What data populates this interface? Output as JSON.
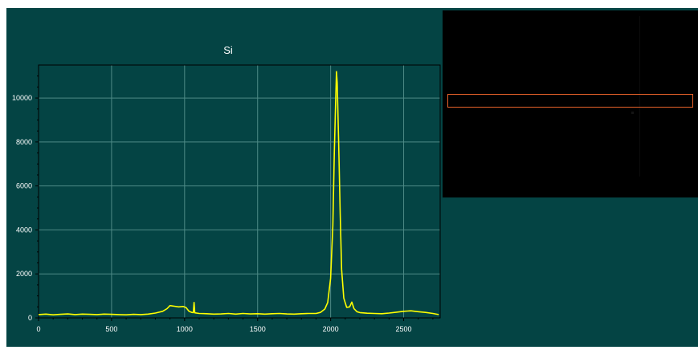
{
  "chart_data": {
    "type": "line",
    "title": "Si",
    "xlabel": "",
    "ylabel": "",
    "xlim": [
      0,
      2750
    ],
    "ylim": [
      0,
      11500
    ],
    "xticks": [
      0,
      500,
      1000,
      1500,
      2000,
      2500
    ],
    "yticks": [
      0,
      2000,
      4000,
      6000,
      8000,
      10000
    ],
    "grid": true,
    "series": [
      {
        "color": "#ffff00",
        "points": [
          [
            0,
            150
          ],
          [
            50,
            170
          ],
          [
            100,
            140
          ],
          [
            150,
            160
          ],
          [
            200,
            180
          ],
          [
            250,
            150
          ],
          [
            300,
            170
          ],
          [
            350,
            160
          ],
          [
            400,
            150
          ],
          [
            450,
            170
          ],
          [
            500,
            160
          ],
          [
            550,
            150
          ],
          [
            600,
            140
          ],
          [
            650,
            160
          ],
          [
            700,
            150
          ],
          [
            750,
            170
          ],
          [
            800,
            220
          ],
          [
            850,
            300
          ],
          [
            880,
            420
          ],
          [
            900,
            560
          ],
          [
            930,
            530
          ],
          [
            960,
            500
          ],
          [
            990,
            520
          ],
          [
            1010,
            470
          ],
          [
            1030,
            300
          ],
          [
            1050,
            250
          ],
          [
            1060,
            240
          ],
          [
            1065,
            700
          ],
          [
            1070,
            230
          ],
          [
            1100,
            200
          ],
          [
            1150,
            190
          ],
          [
            1200,
            170
          ],
          [
            1250,
            180
          ],
          [
            1300,
            200
          ],
          [
            1350,
            170
          ],
          [
            1400,
            200
          ],
          [
            1450,
            180
          ],
          [
            1500,
            190
          ],
          [
            1550,
            170
          ],
          [
            1600,
            190
          ],
          [
            1650,
            200
          ],
          [
            1700,
            180
          ],
          [
            1750,
            170
          ],
          [
            1800,
            190
          ],
          [
            1850,
            200
          ],
          [
            1900,
            200
          ],
          [
            1930,
            250
          ],
          [
            1960,
            400
          ],
          [
            1980,
            700
          ],
          [
            2000,
            1800
          ],
          [
            2015,
            4200
          ],
          [
            2025,
            7500
          ],
          [
            2035,
            10000
          ],
          [
            2040,
            11200
          ],
          [
            2045,
            10700
          ],
          [
            2055,
            8000
          ],
          [
            2065,
            4800
          ],
          [
            2075,
            2200
          ],
          [
            2090,
            900
          ],
          [
            2110,
            480
          ],
          [
            2130,
            500
          ],
          [
            2145,
            720
          ],
          [
            2160,
            420
          ],
          [
            2180,
            280
          ],
          [
            2200,
            240
          ],
          [
            2250,
            210
          ],
          [
            2300,
            200
          ],
          [
            2350,
            190
          ],
          [
            2400,
            220
          ],
          [
            2450,
            260
          ],
          [
            2500,
            300
          ],
          [
            2550,
            320
          ],
          [
            2600,
            280
          ],
          [
            2650,
            250
          ],
          [
            2700,
            200
          ],
          [
            2740,
            150
          ]
        ]
      }
    ]
  }
}
